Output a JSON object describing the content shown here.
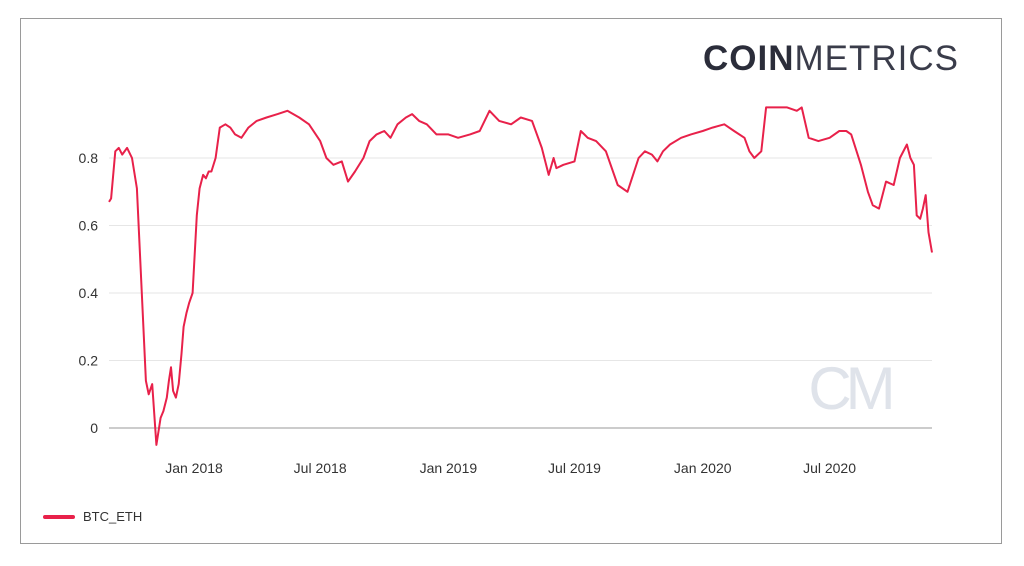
{
  "brand": {
    "bold": "COIN",
    "light": "METRICS"
  },
  "watermark": "CM",
  "colors": {
    "series": "#e8214a",
    "grid": "#e6e6e6",
    "axis": "#999999"
  },
  "chart_data": {
    "type": "line",
    "title": "",
    "xlabel": "",
    "ylabel": "",
    "x_ticks": [
      "Jan 2018",
      "Jul 2018",
      "Jan 2019",
      "Jul 2019",
      "Jan 2020",
      "Jul 2020"
    ],
    "y_ticks": [
      "0",
      "0.2",
      "0.4",
      "0.6",
      "0.8"
    ],
    "ylim": [
      -0.05,
      1.0
    ],
    "xlim": [
      "2017-09-01",
      "2020-11-25"
    ],
    "grid": true,
    "legend": "bottom-left",
    "series": [
      {
        "name": "BTC_ETH",
        "x": [
          "2017-09-01",
          "2017-09-04",
          "2017-09-10",
          "2017-09-15",
          "2017-09-20",
          "2017-09-27",
          "2017-10-04",
          "2017-10-11",
          "2017-10-18",
          "2017-10-24",
          "2017-10-28",
          "2017-11-02",
          "2017-11-08",
          "2017-11-14",
          "2017-11-18",
          "2017-11-23",
          "2017-11-26",
          "2017-11-29",
          "2017-12-02",
          "2017-12-06",
          "2017-12-10",
          "2017-12-14",
          "2017-12-17",
          "2017-12-21",
          "2017-12-25",
          "2017-12-30",
          "2018-01-05",
          "2018-01-09",
          "2018-01-14",
          "2018-01-18",
          "2018-01-22",
          "2018-01-26",
          "2018-02-01",
          "2018-02-07",
          "2018-02-15",
          "2018-02-22",
          "2018-03-01",
          "2018-03-10",
          "2018-03-20",
          "2018-04-01",
          "2018-04-15",
          "2018-05-01",
          "2018-05-15",
          "2018-06-01",
          "2018-06-15",
          "2018-07-01",
          "2018-07-10",
          "2018-07-20",
          "2018-08-01",
          "2018-08-10",
          "2018-08-20",
          "2018-09-01",
          "2018-09-10",
          "2018-09-20",
          "2018-10-01",
          "2018-10-10",
          "2018-10-20",
          "2018-11-01",
          "2018-11-10",
          "2018-11-20",
          "2018-12-01",
          "2018-12-15",
          "2019-01-01",
          "2019-01-15",
          "2019-02-01",
          "2019-02-15",
          "2019-03-01",
          "2019-03-15",
          "2019-04-01",
          "2019-04-15",
          "2019-05-01",
          "2019-05-15",
          "2019-05-25",
          "2019-06-01",
          "2019-06-05",
          "2019-06-15",
          "2019-07-01",
          "2019-07-10",
          "2019-07-15",
          "2019-07-20",
          "2019-08-01",
          "2019-08-15",
          "2019-09-01",
          "2019-09-15",
          "2019-10-01",
          "2019-10-10",
          "2019-10-20",
          "2019-10-28",
          "2019-11-05",
          "2019-11-15",
          "2019-12-01",
          "2019-12-15",
          "2020-01-01",
          "2020-01-15",
          "2020-02-01",
          "2020-02-15",
          "2020-03-01",
          "2020-03-08",
          "2020-03-15",
          "2020-03-25",
          "2020-04-01",
          "2020-04-15",
          "2020-05-01",
          "2020-05-15",
          "2020-05-22",
          "2020-06-01",
          "2020-06-15",
          "2020-07-01",
          "2020-07-15",
          "2020-07-25",
          "2020-08-01",
          "2020-08-15",
          "2020-08-25",
          "2020-09-01",
          "2020-09-10",
          "2020-09-20",
          "2020-10-01",
          "2020-10-10",
          "2020-10-20",
          "2020-10-25",
          "2020-10-30",
          "2020-11-03",
          "2020-11-08",
          "2020-11-12",
          "2020-11-16",
          "2020-11-20",
          "2020-11-25"
        ],
        "values": [
          0.67,
          0.68,
          0.82,
          0.83,
          0.81,
          0.83,
          0.8,
          0.71,
          0.4,
          0.14,
          0.1,
          0.13,
          -0.05,
          0.03,
          0.05,
          0.09,
          0.14,
          0.18,
          0.11,
          0.09,
          0.13,
          0.22,
          0.3,
          0.34,
          0.37,
          0.4,
          0.63,
          0.71,
          0.75,
          0.74,
          0.76,
          0.76,
          0.8,
          0.89,
          0.9,
          0.89,
          0.87,
          0.86,
          0.89,
          0.91,
          0.92,
          0.93,
          0.94,
          0.92,
          0.9,
          0.85,
          0.8,
          0.78,
          0.79,
          0.73,
          0.76,
          0.8,
          0.85,
          0.87,
          0.88,
          0.86,
          0.9,
          0.92,
          0.93,
          0.91,
          0.9,
          0.87,
          0.87,
          0.86,
          0.87,
          0.88,
          0.94,
          0.91,
          0.9,
          0.92,
          0.91,
          0.83,
          0.75,
          0.8,
          0.77,
          0.78,
          0.79,
          0.88,
          0.87,
          0.86,
          0.85,
          0.82,
          0.72,
          0.7,
          0.8,
          0.82,
          0.81,
          0.79,
          0.82,
          0.84,
          0.86,
          0.87,
          0.88,
          0.89,
          0.9,
          0.88,
          0.86,
          0.82,
          0.8,
          0.82,
          0.95,
          0.95,
          0.95,
          0.94,
          0.95,
          0.86,
          0.85,
          0.86,
          0.88,
          0.88,
          0.87,
          0.78,
          0.7,
          0.66,
          0.65,
          0.73,
          0.72,
          0.8,
          0.84,
          0.8,
          0.78,
          0.63,
          0.62,
          0.65,
          0.69,
          0.58,
          0.52
        ]
      }
    ]
  }
}
